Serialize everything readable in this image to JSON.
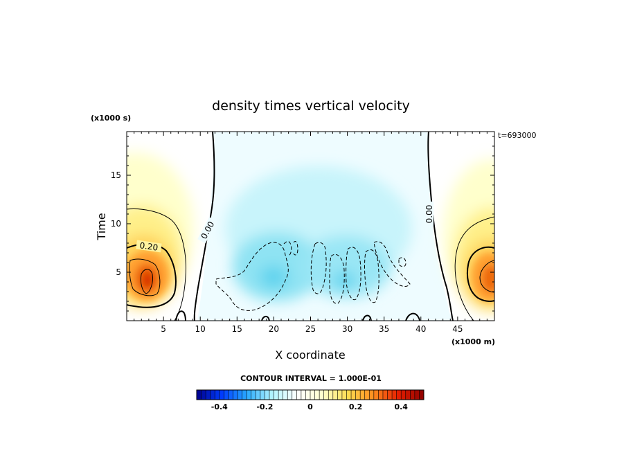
{
  "chart_data": {
    "type": "heatmap",
    "title": "density times vertical velocity",
    "xlabel": "X coordinate",
    "ylabel": "Time",
    "x_unit": "(x1000 m)",
    "y_unit": "(x1000 s)",
    "time_label": "t=693000",
    "xlim": [
      0,
      50
    ],
    "ylim": [
      0,
      19.5
    ],
    "xticks": [
      "5",
      "10",
      "15",
      "20",
      "25",
      "30",
      "35",
      "40",
      "45"
    ],
    "yticks": [
      "5",
      "10",
      "15"
    ],
    "contour_interval": "CONTOUR INTERVAL = 1.000E-01",
    "contour_labels": [
      "0.00",
      "0.20",
      "0.00"
    ],
    "colorbar": {
      "vmin": -0.5,
      "vmax": 0.5,
      "ticks": [
        "-0.4",
        "-0.2",
        "0",
        "0.2",
        "0.4"
      ],
      "colors": [
        "#00008c",
        "#003cff",
        "#28aaff",
        "#b4f5ff",
        "#ffffff",
        "#ffffcc",
        "#ffdc50",
        "#ff8c1e",
        "#e61e00",
        "#8c0000"
      ]
    },
    "features": [
      {
        "name": "positive-left",
        "x": 3.2,
        "y": 4.6,
        "peak": 0.42
      },
      {
        "name": "positive-right",
        "x": 50,
        "y": 5.0,
        "peak": 0.36
      },
      {
        "name": "negative-center-a",
        "x": 19.5,
        "y": 4.2,
        "peak": -0.2
      },
      {
        "name": "negative-center-b",
        "x": 29.5,
        "y": 4.0,
        "peak": -0.22
      }
    ]
  }
}
